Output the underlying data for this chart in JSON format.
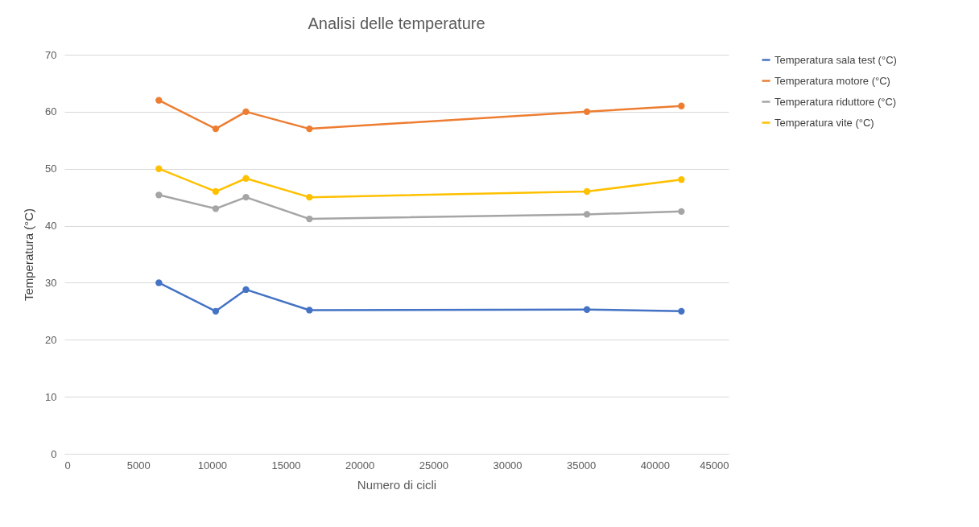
{
  "chart_data": {
    "type": "line",
    "title": "Analisi delle temperature",
    "xlabel": "Numero di cicli",
    "ylabel": "Temperatura (°C)",
    "x": [
      6400,
      10250,
      12300,
      16600,
      35400,
      41800
    ],
    "series": [
      {
        "name": "Temperatura sala test (°C)",
        "color": "#4472c4",
        "values": [
          30,
          25,
          28.8,
          25.2,
          25.3,
          25
        ]
      },
      {
        "name": "Temperatura motore (°C)",
        "color": "#ed7d31",
        "values": [
          62,
          57,
          60,
          57,
          60,
          61
        ]
      },
      {
        "name": "Temperatura riduttore (°C)",
        "color": "#a5a5a5",
        "values": [
          45.4,
          43,
          45,
          41.2,
          42,
          42.5
        ]
      },
      {
        "name": "Temperatura vite (°C)",
        "color": "#ffc000",
        "values": [
          50,
          46,
          48.3,
          45,
          46,
          48.1
        ]
      }
    ],
    "xlim": [
      0,
      45000
    ],
    "xticks": [
      0,
      5000,
      10000,
      15000,
      20000,
      25000,
      30000,
      35000,
      40000,
      45000
    ],
    "ylim": [
      0,
      70
    ],
    "yticks": [
      0,
      10,
      20,
      30,
      40,
      50,
      60,
      70
    ],
    "grid": "y",
    "legend": "right",
    "marker": "circle",
    "line_style": "solid"
  }
}
